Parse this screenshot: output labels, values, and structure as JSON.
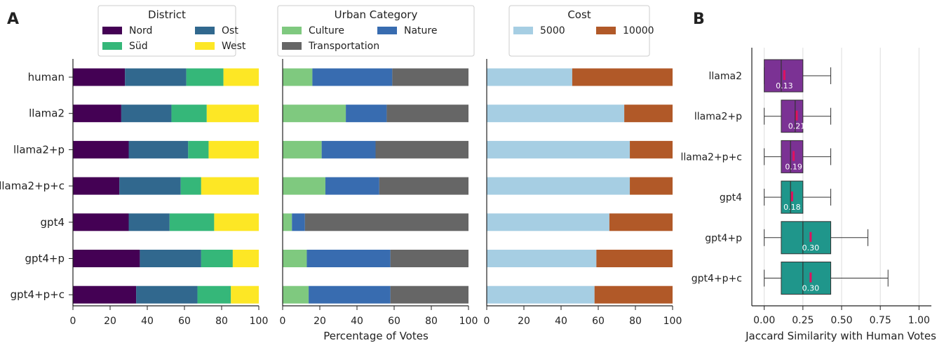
{
  "panel_labels": {
    "a": "A",
    "b": "B"
  },
  "shared": {
    "models": [
      "human",
      "llama2",
      "llama2+p",
      "llama2+p+c",
      "gpt4",
      "gpt4+p",
      "gpt4+p+c"
    ],
    "xlabel_a": "Percentage of Votes",
    "xticks_a": [
      "0",
      "20",
      "40",
      "60",
      "80",
      "100"
    ]
  },
  "chart_data": [
    {
      "type": "bar",
      "orientation": "horizontal",
      "stacked": true,
      "legend_title": "District",
      "categories": [
        "human",
        "llama2",
        "llama2+p",
        "llama2+p+c",
        "gpt4",
        "gpt4+p",
        "gpt4+p+c"
      ],
      "series": [
        {
          "name": "Nord",
          "color": "#440154",
          "values": [
            28,
            26,
            30,
            25,
            30,
            36,
            34
          ]
        },
        {
          "name": "Ost",
          "color": "#31688e",
          "values": [
            33,
            27,
            32,
            33,
            22,
            33,
            33
          ]
        },
        {
          "name": "Süd",
          "color": "#35b779",
          "values": [
            20,
            19,
            11,
            11,
            24,
            17,
            18
          ]
        },
        {
          "name": "West",
          "color": "#fde725",
          "values": [
            19,
            28,
            27,
            31,
            24,
            14,
            15
          ]
        }
      ],
      "xlim": [
        0,
        100
      ]
    },
    {
      "type": "bar",
      "orientation": "horizontal",
      "stacked": true,
      "legend_title": "Urban Category",
      "categories": [
        "human",
        "llama2",
        "llama2+p",
        "llama2+p+c",
        "gpt4",
        "gpt4+p",
        "gpt4+p+c"
      ],
      "series": [
        {
          "name": "Culture",
          "color": "#7fc97f",
          "values": [
            16,
            34,
            21,
            23,
            5,
            13,
            14
          ]
        },
        {
          "name": "Nature",
          "color": "#386cb0",
          "values": [
            43,
            22,
            29,
            29,
            7,
            45,
            44
          ]
        },
        {
          "name": "Transportation",
          "color": "#666666",
          "values": [
            41,
            44,
            50,
            48,
            88,
            42,
            42
          ]
        }
      ],
      "xlabel": "Percentage of Votes",
      "xlim": [
        0,
        100
      ]
    },
    {
      "type": "bar",
      "orientation": "horizontal",
      "stacked": true,
      "legend_title": "Cost",
      "categories": [
        "human",
        "llama2",
        "llama2+p",
        "llama2+p+c",
        "gpt4",
        "gpt4+p",
        "gpt4+p+c"
      ],
      "series": [
        {
          "name": "5000",
          "color": "#a6cee3",
          "values": [
            46,
            74,
            77,
            77,
            66,
            59,
            58
          ]
        },
        {
          "name": "10000",
          "color": "#b15928",
          "values": [
            54,
            26,
            23,
            23,
            34,
            41,
            42
          ]
        }
      ],
      "xlim": [
        0,
        100
      ]
    },
    {
      "type": "box",
      "orientation": "horizontal",
      "xlabel": "Jaccard Similarity with Human Votes",
      "xticks": [
        "0.00",
        "0.25",
        "0.50",
        "0.75",
        "1.00"
      ],
      "xlim": [
        -0.08,
        1.08
      ],
      "grid": true,
      "categories": [
        "llama2",
        "llama2+p",
        "llama2+p+c",
        "gpt4",
        "gpt4+p",
        "gpt4+p+c"
      ],
      "boxes": [
        {
          "name": "llama2",
          "color": "#7b3294",
          "whisker_low": 0.0,
          "q1": 0.0,
          "median": 0.11,
          "q3": 0.25,
          "whisker_high": 0.43,
          "mean": 0.13,
          "mean_label": "0.13"
        },
        {
          "name": "llama2+p",
          "color": "#7b3294",
          "whisker_low": 0.0,
          "q1": 0.11,
          "median": 0.2,
          "q3": 0.25,
          "whisker_high": 0.43,
          "mean": 0.21,
          "mean_label": "0.21"
        },
        {
          "name": "llama2+p+c",
          "color": "#7b3294",
          "whisker_low": 0.0,
          "q1": 0.11,
          "median": 0.17,
          "q3": 0.25,
          "whisker_high": 0.43,
          "mean": 0.19,
          "mean_label": "0.19"
        },
        {
          "name": "gpt4",
          "color": "#1f968b",
          "whisker_low": 0.0,
          "q1": 0.11,
          "median": 0.17,
          "q3": 0.25,
          "whisker_high": 0.43,
          "mean": 0.18,
          "mean_label": "0.18"
        },
        {
          "name": "gpt4+p",
          "color": "#1f968b",
          "whisker_low": 0.0,
          "q1": 0.11,
          "median": 0.25,
          "q3": 0.43,
          "whisker_high": 0.67,
          "mean": 0.3,
          "mean_label": "0.30"
        },
        {
          "name": "gpt4+p+c",
          "color": "#1f968b",
          "whisker_low": 0.0,
          "q1": 0.11,
          "median": 0.25,
          "q3": 0.43,
          "whisker_high": 0.8,
          "mean": 0.3,
          "mean_label": "0.30"
        }
      ],
      "mean_marker_color": "#e0115f"
    }
  ]
}
